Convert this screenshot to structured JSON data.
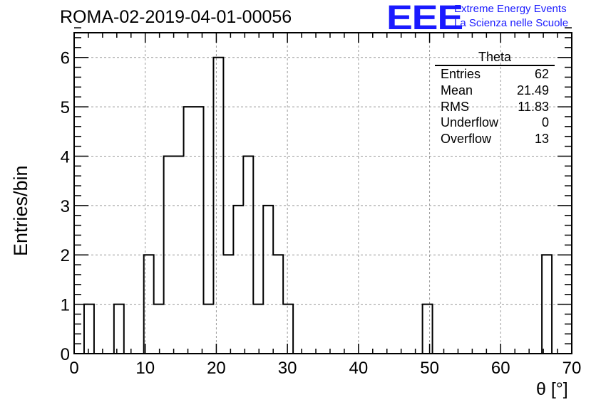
{
  "header": {
    "run_title": "ROMA-02-2019-04-01-00056",
    "logo": "EEE",
    "org_line1": "Extreme Energy Events",
    "org_line2": "La Scienza nelle Scuole"
  },
  "stats": {
    "title": "Theta",
    "rows": [
      {
        "label": "Entries",
        "value": "62"
      },
      {
        "label": "Mean",
        "value": "21.49"
      },
      {
        "label": "RMS",
        "value": "11.83"
      },
      {
        "label": "Underflow",
        "value": "0"
      },
      {
        "label": "Overflow",
        "value": "13"
      }
    ]
  },
  "chart_data": {
    "type": "bar",
    "title": "ROMA-02-2019-04-01-00056",
    "xlabel": "θ [°]",
    "ylabel": "Entries/bin",
    "xlim": [
      0,
      70
    ],
    "ylim": [
      0,
      6.5
    ],
    "grid": true,
    "bin_width": 1.4,
    "bins_start": 1.4,
    "values": [
      1,
      0,
      0,
      1,
      0,
      0,
      2,
      1,
      4,
      4,
      5,
      5,
      1,
      6,
      2,
      3,
      4,
      1,
      3,
      2,
      1,
      0,
      0,
      0,
      0,
      0,
      0,
      0,
      0,
      0,
      0,
      0,
      0,
      0,
      1,
      0,
      0,
      0,
      0,
      0,
      0,
      0,
      0,
      0,
      0,
      0,
      2
    ],
    "x_ticks": [
      0,
      10,
      20,
      30,
      40,
      50,
      60,
      70
    ],
    "y_ticks": [
      0,
      1,
      2,
      3,
      4,
      5,
      6
    ],
    "colors": {
      "line": "#000000",
      "grid": "#9a9a9a",
      "logo": "#1a1aff"
    }
  }
}
